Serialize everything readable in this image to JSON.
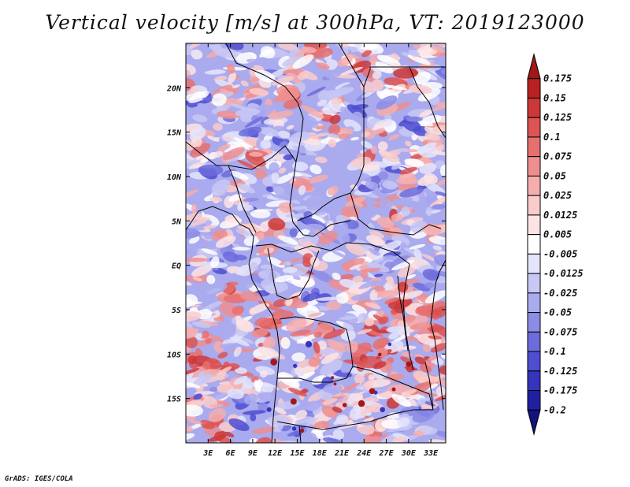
{
  "title": "Vertical velocity [m/s] at 300hPa, VT: 2019123000",
  "credit": "GrADS: IGES/COLA",
  "map": {
    "lon_range": [
      0,
      35
    ],
    "lat_range": [
      -20,
      25
    ],
    "lon_ticks": [
      "3E",
      "6E",
      "9E",
      "12E",
      "15E",
      "18E",
      "21E",
      "24E",
      "27E",
      "30E",
      "33E"
    ],
    "lon_tick_values": [
      3,
      6,
      9,
      12,
      15,
      18,
      21,
      24,
      27,
      30,
      33
    ],
    "lat_ticks": [
      "20N",
      "15N",
      "10N",
      "5N",
      "EQ",
      "5S",
      "10S",
      "15S"
    ],
    "lat_tick_values": [
      20,
      15,
      10,
      5,
      0,
      -5,
      -10,
      -15
    ]
  },
  "colorbar": {
    "labels": [
      "0.175",
      "0.15",
      "0.125",
      "0.1",
      "0.075",
      "0.05",
      "0.025",
      "0.0125",
      "0.005",
      "-0.005",
      "-0.0125",
      "-0.025",
      "-0.05",
      "-0.075",
      "-0.1",
      "-0.125",
      "-0.175",
      "-0.2"
    ],
    "colors": [
      "#a01818",
      "#b82222",
      "#cc3838",
      "#dc5454",
      "#e67070",
      "#ee8e8e",
      "#f5aeae",
      "#f9cccc",
      "#fde4e4",
      "#ffffff",
      "#e4e4fb",
      "#c8c8f4",
      "#aaaaee",
      "#8c8ce6",
      "#6c6cdc",
      "#4e4ed0",
      "#3434bc",
      "#2020a0",
      "#12127c"
    ]
  }
}
